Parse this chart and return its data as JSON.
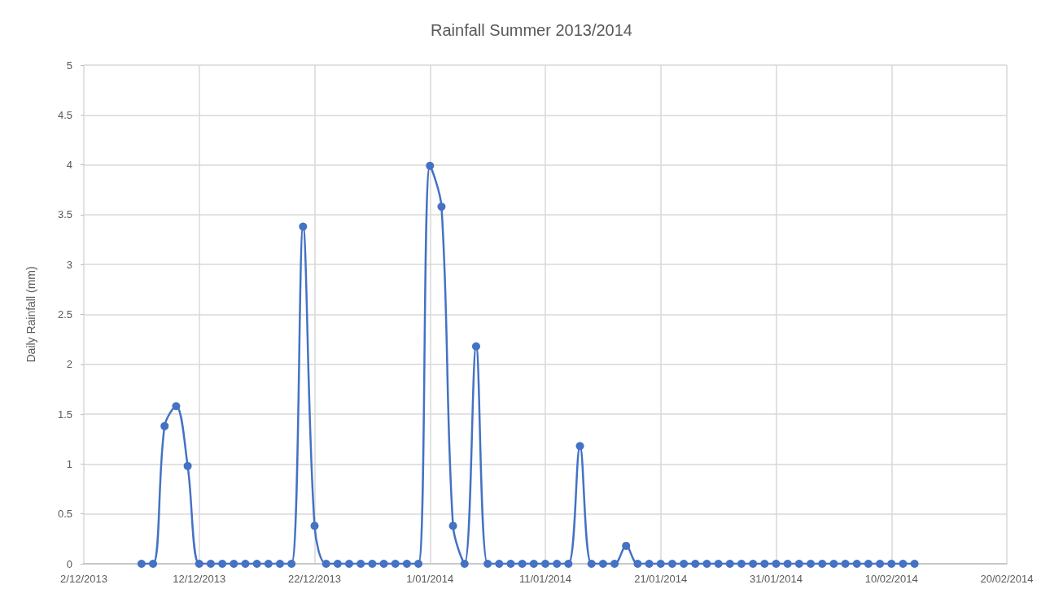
{
  "chart_data": {
    "type": "line",
    "title": "Rainfall Summer 2013/2014",
    "ylabel": "Daily Rainfall (mm)",
    "x": [
      "2013-12-07",
      "2013-12-08",
      "2013-12-09",
      "2013-12-10",
      "2013-12-11",
      "2013-12-12",
      "2013-12-13",
      "2013-12-14",
      "2013-12-15",
      "2013-12-16",
      "2013-12-17",
      "2013-12-18",
      "2013-12-19",
      "2013-12-20",
      "2013-12-21",
      "2013-12-22",
      "2013-12-23",
      "2013-12-24",
      "2013-12-25",
      "2013-12-26",
      "2013-12-27",
      "2013-12-28",
      "2013-12-29",
      "2013-12-30",
      "2013-12-31",
      "2014-01-01",
      "2014-01-02",
      "2014-01-03",
      "2014-01-04",
      "2014-01-05",
      "2014-01-06",
      "2014-01-07",
      "2014-01-08",
      "2014-01-09",
      "2014-01-10",
      "2014-01-11",
      "2014-01-12",
      "2014-01-13",
      "2014-01-14",
      "2014-01-15",
      "2014-01-16",
      "2014-01-17",
      "2014-01-18",
      "2014-01-19",
      "2014-01-20",
      "2014-01-21",
      "2014-01-22",
      "2014-01-23",
      "2014-01-24",
      "2014-01-25",
      "2014-01-26",
      "2014-01-27",
      "2014-01-28",
      "2014-01-29",
      "2014-01-30",
      "2014-01-31",
      "2014-02-01",
      "2014-02-02",
      "2014-02-03",
      "2014-02-04",
      "2014-02-05",
      "2014-02-06",
      "2014-02-07",
      "2014-02-08",
      "2014-02-09",
      "2014-02-10",
      "2014-02-11",
      "2014-02-12"
    ],
    "series": [
      {
        "color": "#4472c4",
        "values": [
          0,
          0,
          1.38,
          1.58,
          0.98,
          0,
          0,
          0,
          0,
          0,
          0,
          0,
          0,
          0,
          3.38,
          0.38,
          0,
          0,
          0,
          0,
          0,
          0,
          0,
          0,
          0,
          3.99,
          3.58,
          0.38,
          0,
          2.18,
          0,
          0,
          0,
          0,
          0,
          0,
          0,
          0,
          1.18,
          0,
          0,
          0,
          0.18,
          0,
          0,
          0,
          0,
          0,
          0,
          0,
          0,
          0,
          0,
          0,
          0,
          0,
          0,
          0,
          0,
          0,
          0,
          0,
          0,
          0,
          0,
          0,
          0,
          0
        ]
      }
    ],
    "xlim": [
      "2013-12-02",
      "2014-02-20"
    ],
    "xticks": [
      {
        "value": "2013-12-02",
        "label": "2/12/2013"
      },
      {
        "value": "2013-12-12",
        "label": "12/12/2013"
      },
      {
        "value": "2013-12-22",
        "label": "22/12/2013"
      },
      {
        "value": "2014-01-01",
        "label": "1/01/2014"
      },
      {
        "value": "2014-01-11",
        "label": "11/01/2014"
      },
      {
        "value": "2014-01-21",
        "label": "21/01/2014"
      },
      {
        "value": "2014-01-31",
        "label": "31/01/2014"
      },
      {
        "value": "2014-02-10",
        "label": "10/02/2014"
      },
      {
        "value": "2014-02-20",
        "label": "20/02/2014"
      }
    ],
    "ylim": [
      0,
      5
    ],
    "yticks": [
      0,
      0.5,
      1,
      1.5,
      2,
      2.5,
      3,
      3.5,
      4,
      4.5,
      5
    ],
    "grid": true,
    "marker": "circle",
    "line_style": "solid"
  }
}
